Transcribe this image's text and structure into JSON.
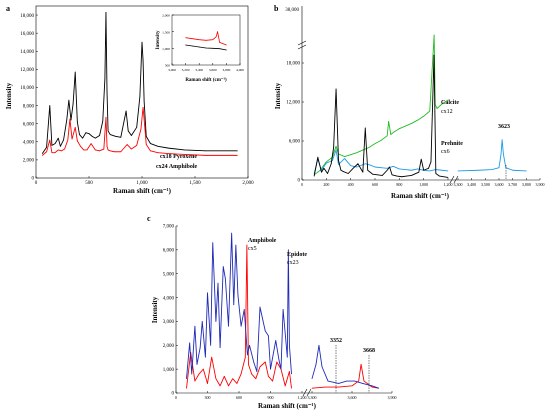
{
  "figure": {
    "panels": [
      {
        "letter": "a",
        "xlabel": "Raman shift (cm⁻¹)",
        "ylabel": "Intensity",
        "xticks": [
          "0",
          "500",
          "1,000",
          "1,500",
          "2,000"
        ],
        "yticks": [
          "0",
          "2,000",
          "4,000",
          "6,000",
          "8,000",
          "10,000",
          "12,000",
          "14,000",
          "16,000",
          "18,000"
        ],
        "labels": [
          "cx18 Pyroxene",
          "cx24 Amphibole"
        ],
        "inset": {
          "xlabel": "Raman shift (cm⁻¹)",
          "ylabel": "Intensity",
          "xticks": [
            "3,000",
            "3,200",
            "3,400",
            "3,600",
            "3,800",
            "4,000"
          ],
          "yticks": [
            "500",
            "1,000",
            "1,500",
            "2,000"
          ]
        }
      },
      {
        "letter": "b",
        "xlabel": "Raman shift (cm⁻¹)",
        "ylabel": "Intensity",
        "xticks": [
          "0",
          "200",
          "400",
          "600",
          "800",
          "1,000",
          "1,200",
          "3,300",
          "3,400",
          "3,500",
          "3,600",
          "3,700",
          "3,800",
          "3,900"
        ],
        "yticks": [
          "0",
          "6,000",
          "12,000",
          "18,000"
        ],
        "ytick_break_top": "38,000",
        "labels": {
          "calcite_name": "Calcite",
          "calcite_id": "cx12",
          "prehnite_name": "Prehnite",
          "prehnite_id": "cx6",
          "peak": "3623"
        }
      },
      {
        "letter": "c",
        "xlabel": "Raman shift (cm⁻¹)",
        "ylabel": "Intensity",
        "xticks": [
          "0",
          "300",
          "600",
          "900",
          "1,200",
          "3,300",
          "3,600",
          "3,900"
        ],
        "yticks": [
          "0",
          "1,000",
          "2,000",
          "3,000",
          "4,000",
          "5,000",
          "6,000",
          "7,000"
        ],
        "labels": {
          "amph_name": "Amphibole",
          "amph_id": "cx5",
          "epi_name": "Epidote",
          "epi_id": "cx23",
          "peak1": "3352",
          "peak2": "3668"
        }
      }
    ]
  },
  "chart_data": [
    {
      "type": "line",
      "panel": "a",
      "xlabel": "Raman shift (cm⁻¹)",
      "ylabel": "Intensity",
      "xlim": [
        0,
        2000
      ],
      "ylim": [
        0,
        19000
      ],
      "series": [
        {
          "name": "cx18 Pyroxene",
          "color": "#000000",
          "x": [
            60,
            100,
            130,
            150,
            180,
            210,
            230,
            260,
            290,
            310,
            330,
            350,
            370,
            390,
            410,
            440,
            470,
            500,
            530,
            560,
            600,
            630,
            650,
            660,
            670,
            680,
            700,
            750,
            800,
            850,
            870,
            900,
            950,
            980,
            1000,
            1010,
            1020,
            1040,
            1080,
            1150,
            1250,
            1400,
            1600,
            1900
          ],
          "y": [
            2700,
            3400,
            8000,
            3600,
            3800,
            4400,
            3500,
            4200,
            6400,
            8600,
            6400,
            8200,
            11700,
            6200,
            4800,
            4400,
            5000,
            4900,
            4600,
            4400,
            4700,
            6300,
            11000,
            18300,
            9500,
            5200,
            4800,
            4600,
            4500,
            7400,
            5200,
            4700,
            5600,
            9000,
            15000,
            13000,
            8500,
            4600,
            3800,
            3500,
            3300,
            3100,
            3000,
            3000
          ]
        },
        {
          "name": "cx24 Amphibole",
          "color": "#ff0000",
          "x": [
            60,
            100,
            130,
            150,
            180,
            210,
            240,
            270,
            300,
            320,
            340,
            370,
            390,
            420,
            450,
            480,
            520,
            560,
            600,
            640,
            660,
            670,
            680,
            700,
            740,
            800,
            860,
            900,
            950,
            990,
            1010,
            1020,
            1040,
            1080,
            1150,
            1250,
            1400,
            1600,
            1900
          ],
          "y": [
            2500,
            2900,
            4200,
            2800,
            2800,
            3100,
            3000,
            3200,
            4200,
            6500,
            4300,
            5600,
            4100,
            3500,
            3100,
            3100,
            3800,
            3100,
            3000,
            3200,
            6700,
            3500,
            3100,
            3000,
            2900,
            2900,
            3700,
            3200,
            3600,
            5400,
            7800,
            6500,
            3700,
            3000,
            2800,
            2700,
            2600,
            2500,
            2500
          ]
        }
      ]
    },
    {
      "type": "line",
      "panel": "a-inset",
      "xlim": [
        3000,
        4000
      ],
      "ylim": [
        500,
        2000
      ],
      "series": [
        {
          "name": "cx18 Pyroxene",
          "color": "#000000",
          "x": [
            3200,
            3300,
            3400,
            3500,
            3600,
            3700,
            3800
          ],
          "y": [
            1100,
            1070,
            1040,
            1010,
            1000,
            990,
            950
          ]
        },
        {
          "name": "cx24 Amphibole",
          "color": "#ff0000",
          "x": [
            3200,
            3300,
            3400,
            3500,
            3600,
            3650,
            3670,
            3700,
            3800
          ],
          "y": [
            1320,
            1290,
            1260,
            1240,
            1260,
            1350,
            1500,
            1180,
            1100
          ]
        }
      ]
    },
    {
      "type": "line",
      "panel": "b",
      "xlabel": "Raman shift (cm⁻¹)",
      "ylabel": "Intensity",
      "xlim": [
        0,
        1200
      ],
      "xlim_right": [
        3300,
        3900
      ],
      "ylim": [
        0,
        20000
      ],
      "series": [
        {
          "name": "cx12 Calcite",
          "color": "#22bb22",
          "x": [
            100,
            150,
            200,
            250,
            280,
            300,
            350,
            400,
            450,
            500,
            550,
            600,
            650,
            700,
            712,
            730,
            750,
            800,
            850,
            900,
            950,
            1000,
            1050,
            1086,
            1095,
            1110,
            1150,
            1200
          ],
          "y": [
            800,
            1500,
            2800,
            3500,
            5200,
            4000,
            3600,
            3900,
            4200,
            4600,
            5000,
            5600,
            6100,
            6800,
            9000,
            7000,
            7300,
            7900,
            8300,
            8700,
            9200,
            9800,
            10600,
            21000,
            11600,
            11000,
            11700,
            12300
          ]
        },
        {
          "name": "cx6 Prehnite",
          "color": "#1e9be8",
          "x": [
            100,
            130,
            160,
            200,
            250,
            280,
            300,
            350,
            400,
            450,
            520,
            560,
            600,
            650,
            700,
            750,
            800,
            850,
            900,
            950,
            1000,
            1050,
            1100,
            1150,
            1200
          ],
          "y": [
            1000,
            3200,
            1500,
            2600,
            3000,
            4600,
            2400,
            3300,
            2200,
            2000,
            2500,
            2300,
            2000,
            1900,
            1800,
            2100,
            1700,
            1600,
            1500,
            1700,
            1500,
            1400,
            1600,
            1500,
            1400
          ]
        },
        {
          "name": "black",
          "color": "#000000",
          "x": [
            100,
            130,
            160,
            180,
            210,
            240,
            260,
            280,
            300,
            320,
            340,
            380,
            420,
            460,
            500,
            520,
            540,
            580,
            620,
            660,
            700,
            720,
            740,
            780,
            820,
            860,
            900,
            960,
            980,
            1000,
            1040,
            1060,
            1085,
            1100,
            1130,
            1200
          ],
          "y": [
            600,
            3500,
            1200,
            1800,
            1000,
            2500,
            5000,
            14000,
            3000,
            1500,
            1300,
            1000,
            1800,
            2500,
            1200,
            8000,
            1500,
            900,
            800,
            700,
            1500,
            2000,
            800,
            600,
            500,
            600,
            700,
            1200,
            3200,
            1500,
            1800,
            2800,
            19200,
            1000,
            600,
            400
          ]
        },
        {
          "name": "cx6 Prehnite OH",
          "color": "#1e9be8",
          "x": [
            3300,
            3450,
            3550,
            3600,
            3615,
            3623,
            3632,
            3650,
            3700,
            3800
          ],
          "y": [
            1400,
            1500,
            1600,
            1900,
            4000,
            6200,
            4000,
            1900,
            1500,
            1400
          ]
        }
      ]
    },
    {
      "type": "line",
      "panel": "c",
      "xlabel": "Raman shift (cm⁻¹)",
      "ylabel": "Intensity",
      "xlim": [
        0,
        1200
      ],
      "xlim_right": [
        3300,
        3900
      ],
      "ylim": [
        0,
        7000
      ],
      "series": [
        {
          "name": "cx5 Amphibole",
          "color": "#ff0000",
          "x": [
            100,
            140,
            180,
            220,
            260,
            300,
            340,
            380,
            420,
            460,
            500,
            540,
            580,
            620,
            660,
            675,
            690,
            720,
            760,
            800,
            850,
            880,
            920,
            960,
            1000,
            1040,
            1080,
            1100
          ],
          "y": [
            200,
            1700,
            500,
            800,
            1000,
            400,
            1500,
            600,
            300,
            700,
            300,
            600,
            400,
            800,
            1500,
            6200,
            1200,
            800,
            600,
            1100,
            1300,
            700,
            500,
            1300,
            1000,
            300,
            900,
            200
          ]
        },
        {
          "name": "cx23 Epidote",
          "color": "#1f2bb8",
          "x": [
            100,
            130,
            150,
            180,
            200,
            230,
            250,
            280,
            300,
            330,
            350,
            380,
            400,
            420,
            450,
            470,
            500,
            530,
            550,
            570,
            590,
            620,
            650,
            680,
            700,
            740,
            770,
            800,
            850,
            880,
            900,
            950,
            980,
            1000,
            1020,
            1040,
            1060,
            1070,
            1080,
            1100
          ],
          "y": [
            600,
            2100,
            800,
            2800,
            1200,
            1900,
            3000,
            1500,
            4200,
            2000,
            6300,
            3000,
            4600,
            1900,
            5300,
            4800,
            2800,
            6700,
            3700,
            6200,
            4100,
            2800,
            3500,
            1600,
            2000,
            1300,
            900,
            3600,
            2600,
            2400,
            1000,
            2200,
            1400,
            1000,
            3500,
            2500,
            1500,
            6000,
            2000,
            800
          ]
        },
        {
          "name": "cx5 Amphibole OH",
          "color": "#ff0000",
          "x": [
            3300,
            3400,
            3500,
            3600,
            3650,
            3668,
            3690,
            3750,
            3800
          ],
          "y": [
            200,
            250,
            250,
            300,
            500,
            1200,
            500,
            250,
            200
          ]
        },
        {
          "name": "cx23 Epidote OH",
          "color": "#1f2bb8",
          "x": [
            3300,
            3330,
            3352,
            3375,
            3420,
            3500,
            3560,
            3620,
            3680,
            3750,
            3800
          ],
          "y": [
            600,
            1200,
            2000,
            1100,
            500,
            400,
            500,
            500,
            400,
            300,
            200
          ]
        }
      ]
    }
  ]
}
